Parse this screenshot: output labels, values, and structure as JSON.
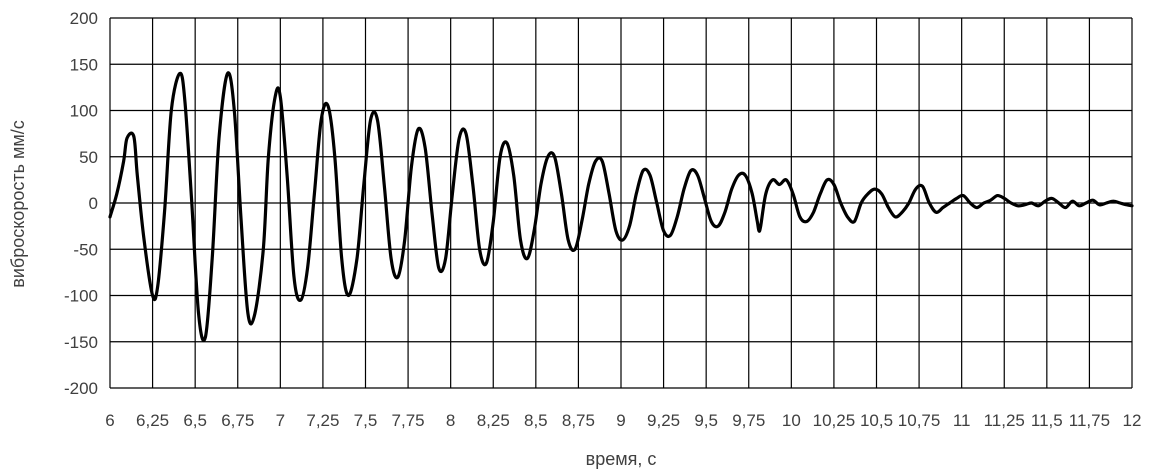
{
  "chart_data": {
    "type": "line",
    "title": "",
    "xlabel": "время, с",
    "ylabel": "виброскорость мм/с",
    "xlim": [
      6,
      12
    ],
    "ylim": [
      -200,
      200
    ],
    "x_ticks": [
      "6",
      "6,25",
      "6,5",
      "6,75",
      "7",
      "7,25",
      "7,5",
      "7,75",
      "8",
      "8,25",
      "8,5",
      "8,75",
      "9",
      "9,25",
      "9,5",
      "9,75",
      "10",
      "10,25",
      "10,5",
      "10,75",
      "11",
      "11,25",
      "11,5",
      "11,75",
      "12"
    ],
    "y_ticks": [
      "200",
      "150",
      "100",
      "50",
      "0",
      "-50",
      "-100",
      "-150",
      "-200"
    ],
    "grid": true,
    "legend": "none",
    "series_color": "#000000",
    "series": [
      {
        "x": [
          6.0,
          6.04,
          6.08,
          6.1,
          6.14,
          6.16,
          6.2,
          6.25,
          6.28,
          6.32,
          6.36,
          6.41,
          6.44,
          6.48,
          6.52,
          6.56,
          6.6,
          6.64,
          6.69,
          6.73,
          6.77,
          6.81,
          6.85,
          6.9,
          6.93,
          6.97,
          7.0,
          7.04,
          7.08,
          7.12,
          7.16,
          7.2,
          7.24,
          7.28,
          7.32,
          7.36,
          7.4,
          7.45,
          7.49,
          7.53,
          7.57,
          7.61,
          7.65,
          7.69,
          7.73,
          7.77,
          7.81,
          7.85,
          7.89,
          7.93,
          7.97,
          8.01,
          8.05,
          8.09,
          8.13,
          8.17,
          8.21,
          8.25,
          8.29,
          8.33,
          8.37,
          8.41,
          8.45,
          8.49,
          8.53,
          8.57,
          8.61,
          8.65,
          8.69,
          8.73,
          8.77,
          8.81,
          8.85,
          8.89,
          8.93,
          8.97,
          9.01,
          9.05,
          9.09,
          9.13,
          9.17,
          9.21,
          9.25,
          9.29,
          9.33,
          9.37,
          9.41,
          9.45,
          9.49,
          9.53,
          9.57,
          9.61,
          9.65,
          9.69,
          9.73,
          9.77,
          9.8,
          9.81,
          9.82,
          9.85,
          9.89,
          9.93,
          9.97,
          10.01,
          10.05,
          10.09,
          10.13,
          10.17,
          10.21,
          10.25,
          10.29,
          10.33,
          10.37,
          10.41,
          10.45,
          10.49,
          10.53,
          10.57,
          10.61,
          10.65,
          10.69,
          10.73,
          10.77,
          10.81,
          10.85,
          10.89,
          10.93,
          10.97,
          11.01,
          11.05,
          11.09,
          11.13,
          11.17,
          11.21,
          11.25,
          11.29,
          11.33,
          11.37,
          11.41,
          11.45,
          11.49,
          11.53,
          11.57,
          11.61,
          11.65,
          11.69,
          11.73,
          11.77,
          11.81,
          11.85,
          11.89,
          11.93,
          11.97,
          12.0
        ],
        "y": [
          -15,
          10,
          45,
          70,
          72,
          30,
          -40,
          -100,
          -90,
          -10,
          100,
          140,
          110,
          0,
          -120,
          -145,
          -60,
          70,
          140,
          100,
          -20,
          -120,
          -120,
          -50,
          50,
          115,
          115,
          30,
          -80,
          -105,
          -70,
          10,
          90,
          105,
          50,
          -60,
          -100,
          -60,
          20,
          90,
          90,
          20,
          -60,
          -80,
          -40,
          40,
          80,
          60,
          -10,
          -70,
          -60,
          10,
          70,
          75,
          20,
          -50,
          -65,
          -20,
          50,
          65,
          30,
          -40,
          -60,
          -30,
          20,
          50,
          50,
          10,
          -40,
          -50,
          -20,
          20,
          45,
          45,
          10,
          -30,
          -40,
          -25,
          10,
          35,
          30,
          0,
          -30,
          -35,
          -15,
          15,
          35,
          30,
          5,
          -20,
          -25,
          -10,
          15,
          30,
          30,
          10,
          -20,
          -30,
          -25,
          10,
          25,
          20,
          25,
          10,
          -15,
          -20,
          -10,
          10,
          25,
          20,
          0,
          -15,
          -20,
          0,
          10,
          15,
          10,
          -5,
          -15,
          -10,
          0,
          15,
          18,
          0,
          -10,
          -5,
          0,
          5,
          8,
          0,
          -5,
          0,
          3,
          8,
          5,
          0,
          -3,
          -2,
          0,
          -3,
          2,
          5,
          0,
          -5,
          2,
          -3,
          0,
          3,
          -2,
          0,
          2,
          0,
          -2,
          -3
        ]
      }
    ]
  }
}
